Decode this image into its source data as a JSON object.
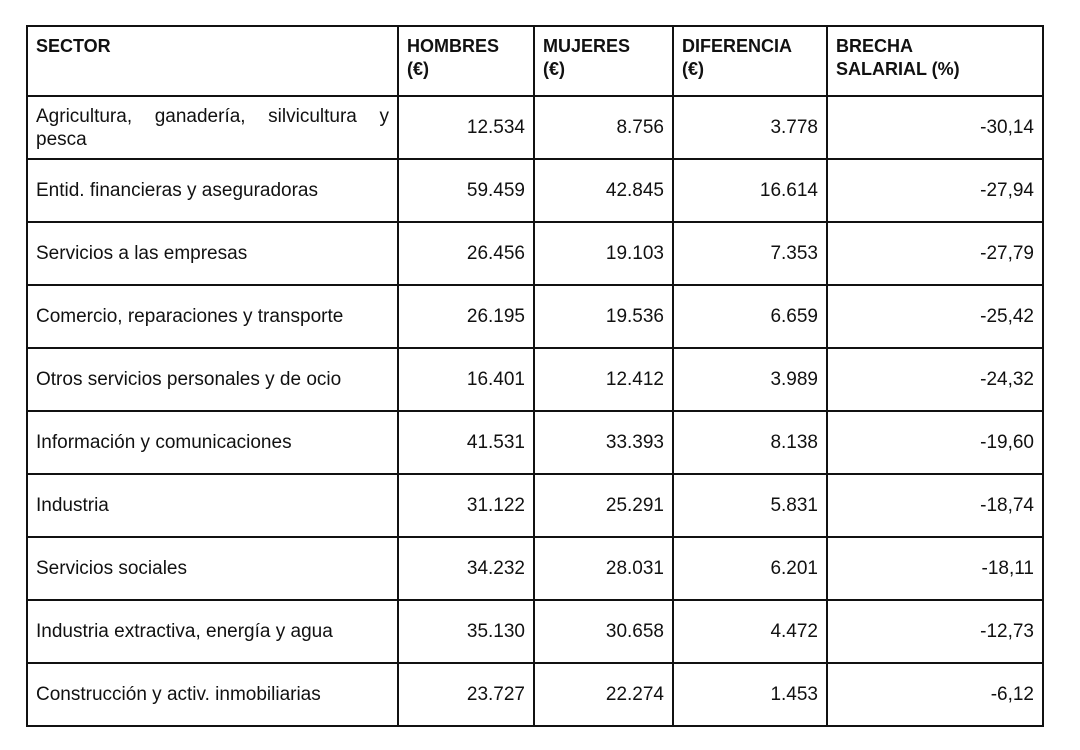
{
  "table": {
    "header": [
      [
        "SECTOR"
      ],
      [
        "HOMBRES",
        "(€)"
      ],
      [
        "MUJERES",
        "(€)"
      ],
      [
        "DIFERENCIA",
        "(€)"
      ],
      [
        "BRECHA",
        "SALARIAL (%)"
      ]
    ],
    "rows": [
      [
        "Agricultura, ganadería, silvicultura y pesca",
        "12.534",
        "8.756",
        "3.778",
        "-30,14"
      ],
      [
        "Entid. financieras y aseguradoras",
        "59.459",
        "42.845",
        "16.614",
        "-27,94"
      ],
      [
        "Servicios a las empresas",
        "26.456",
        "19.103",
        "7.353",
        "-27,79"
      ],
      [
        "Comercio, reparaciones y transporte",
        "26.195",
        "19.536",
        "6.659",
        "-25,42"
      ],
      [
        "Otros servicios personales y de ocio",
        "16.401",
        "12.412",
        "3.989",
        "-24,32"
      ],
      [
        "Información y comunicaciones",
        "41.531",
        "33.393",
        "8.138",
        "-19,60"
      ],
      [
        "Industria",
        "31.122",
        "25.291",
        "5.831",
        "-18,74"
      ],
      [
        "Servicios sociales",
        "34.232",
        "28.031",
        "6.201",
        "-18,11"
      ],
      [
        "Industria extractiva, energía y agua",
        "35.130",
        "30.658",
        "4.472",
        "-12,73"
      ],
      [
        "Construcción y activ. inmobiliarias",
        "23.727",
        "22.274",
        "1.453",
        "-6,12"
      ]
    ]
  }
}
